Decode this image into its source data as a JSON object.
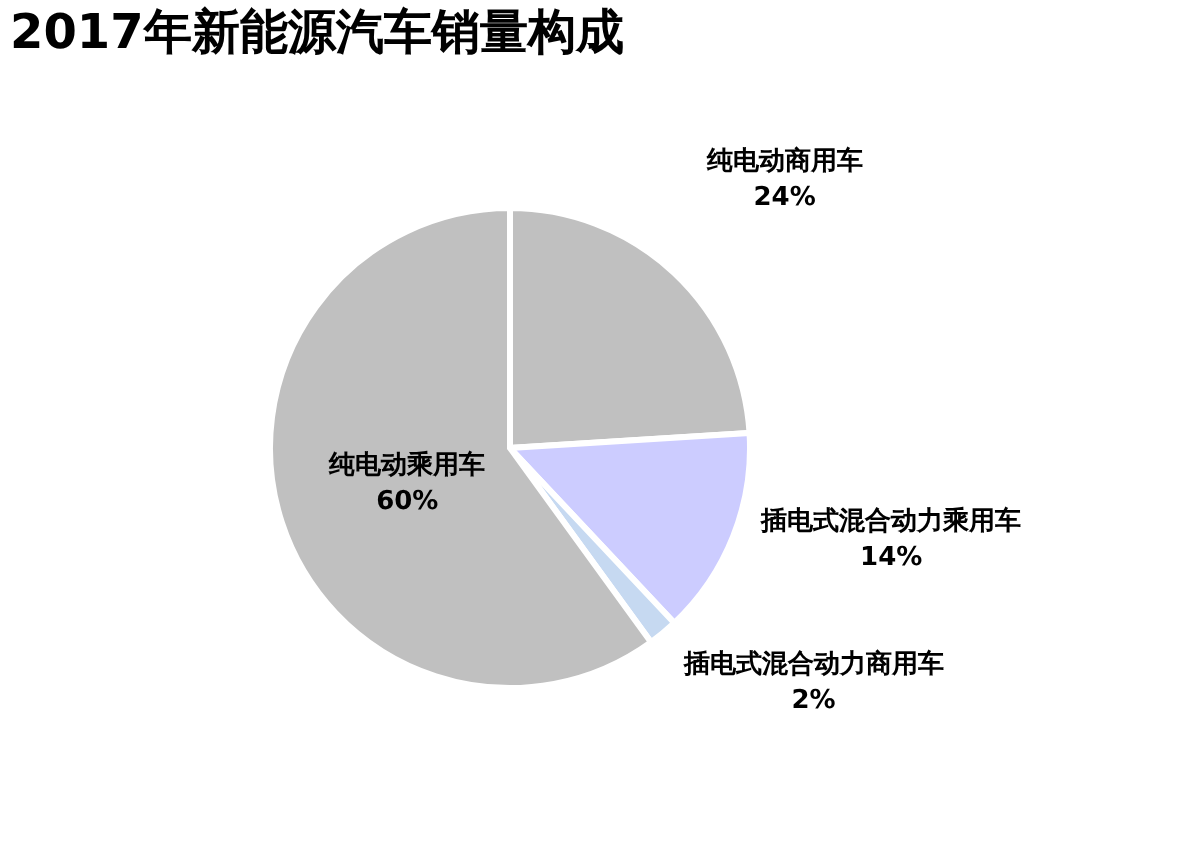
{
  "chart_data": {
    "type": "pie",
    "title": "2017年新能源汽车销量构成",
    "categories": [
      "纯电动商用车",
      "插电式混合动力乘用车",
      "插电式混合动力商用车",
      "纯电动乘用车"
    ],
    "values": [
      24,
      14,
      2,
      60
    ],
    "colors": [
      "#c0c0c0",
      "#ccccff",
      "#c6d9f1",
      "#c0c0c0"
    ],
    "value_labels": [
      "24%",
      "14%",
      "2%",
      "60%"
    ],
    "legend": false
  }
}
